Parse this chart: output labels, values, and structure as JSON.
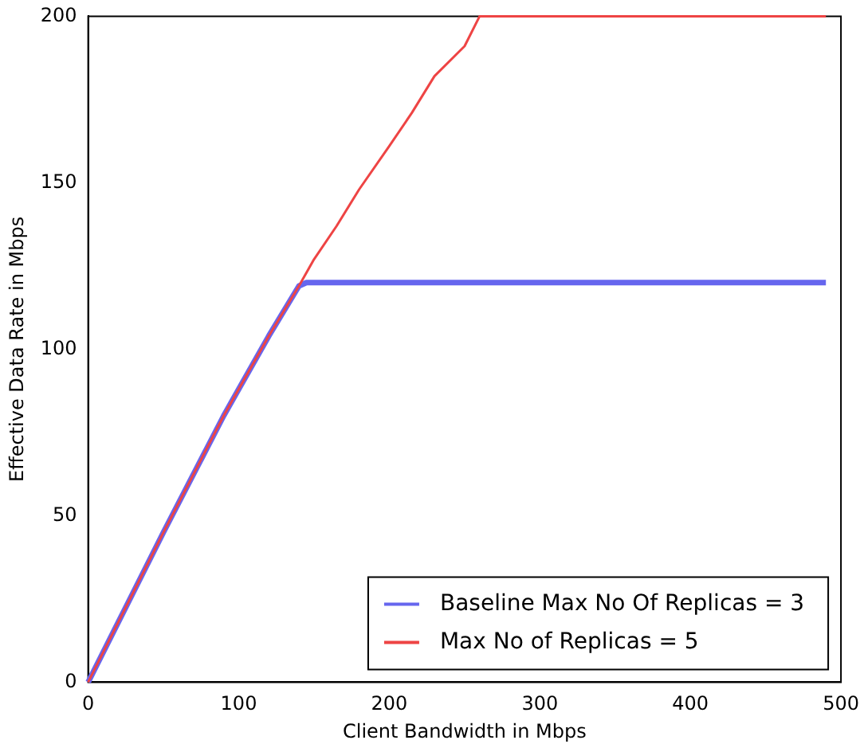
{
  "chart_data": {
    "type": "line",
    "xlabel": "Client Bandwidth in Mbps",
    "ylabel": "Effective Data Rate in Mbps",
    "xlim": [
      0,
      500
    ],
    "xticks": [
      0,
      100,
      200,
      300,
      400,
      500
    ],
    "ylim": [
      0,
      200
    ],
    "yticks": [
      0,
      50,
      100,
      150,
      200
    ],
    "grid": false,
    "legend": "bottom right",
    "marker": "none",
    "line_style": "solid",
    "series": [
      {
        "name": "Baseline Max No Of Replicas = 3",
        "color": "#6666ee",
        "x": [
          0,
          20,
          50,
          90,
          100,
          120,
          140,
          145,
          490
        ],
        "values": [
          0,
          18,
          45,
          80,
          88,
          104,
          119,
          120,
          120
        ]
      },
      {
        "name": "Max No of Replicas = 5",
        "color": "#ee4444",
        "x": [
          0,
          20,
          50,
          90,
          100,
          120,
          140,
          150,
          165,
          180,
          200,
          215,
          230,
          250,
          260,
          490
        ],
        "values": [
          0,
          18,
          45,
          80,
          88,
          104,
          119,
          127,
          137,
          148,
          161,
          171,
          182,
          191,
          200,
          200
        ]
      }
    ]
  }
}
